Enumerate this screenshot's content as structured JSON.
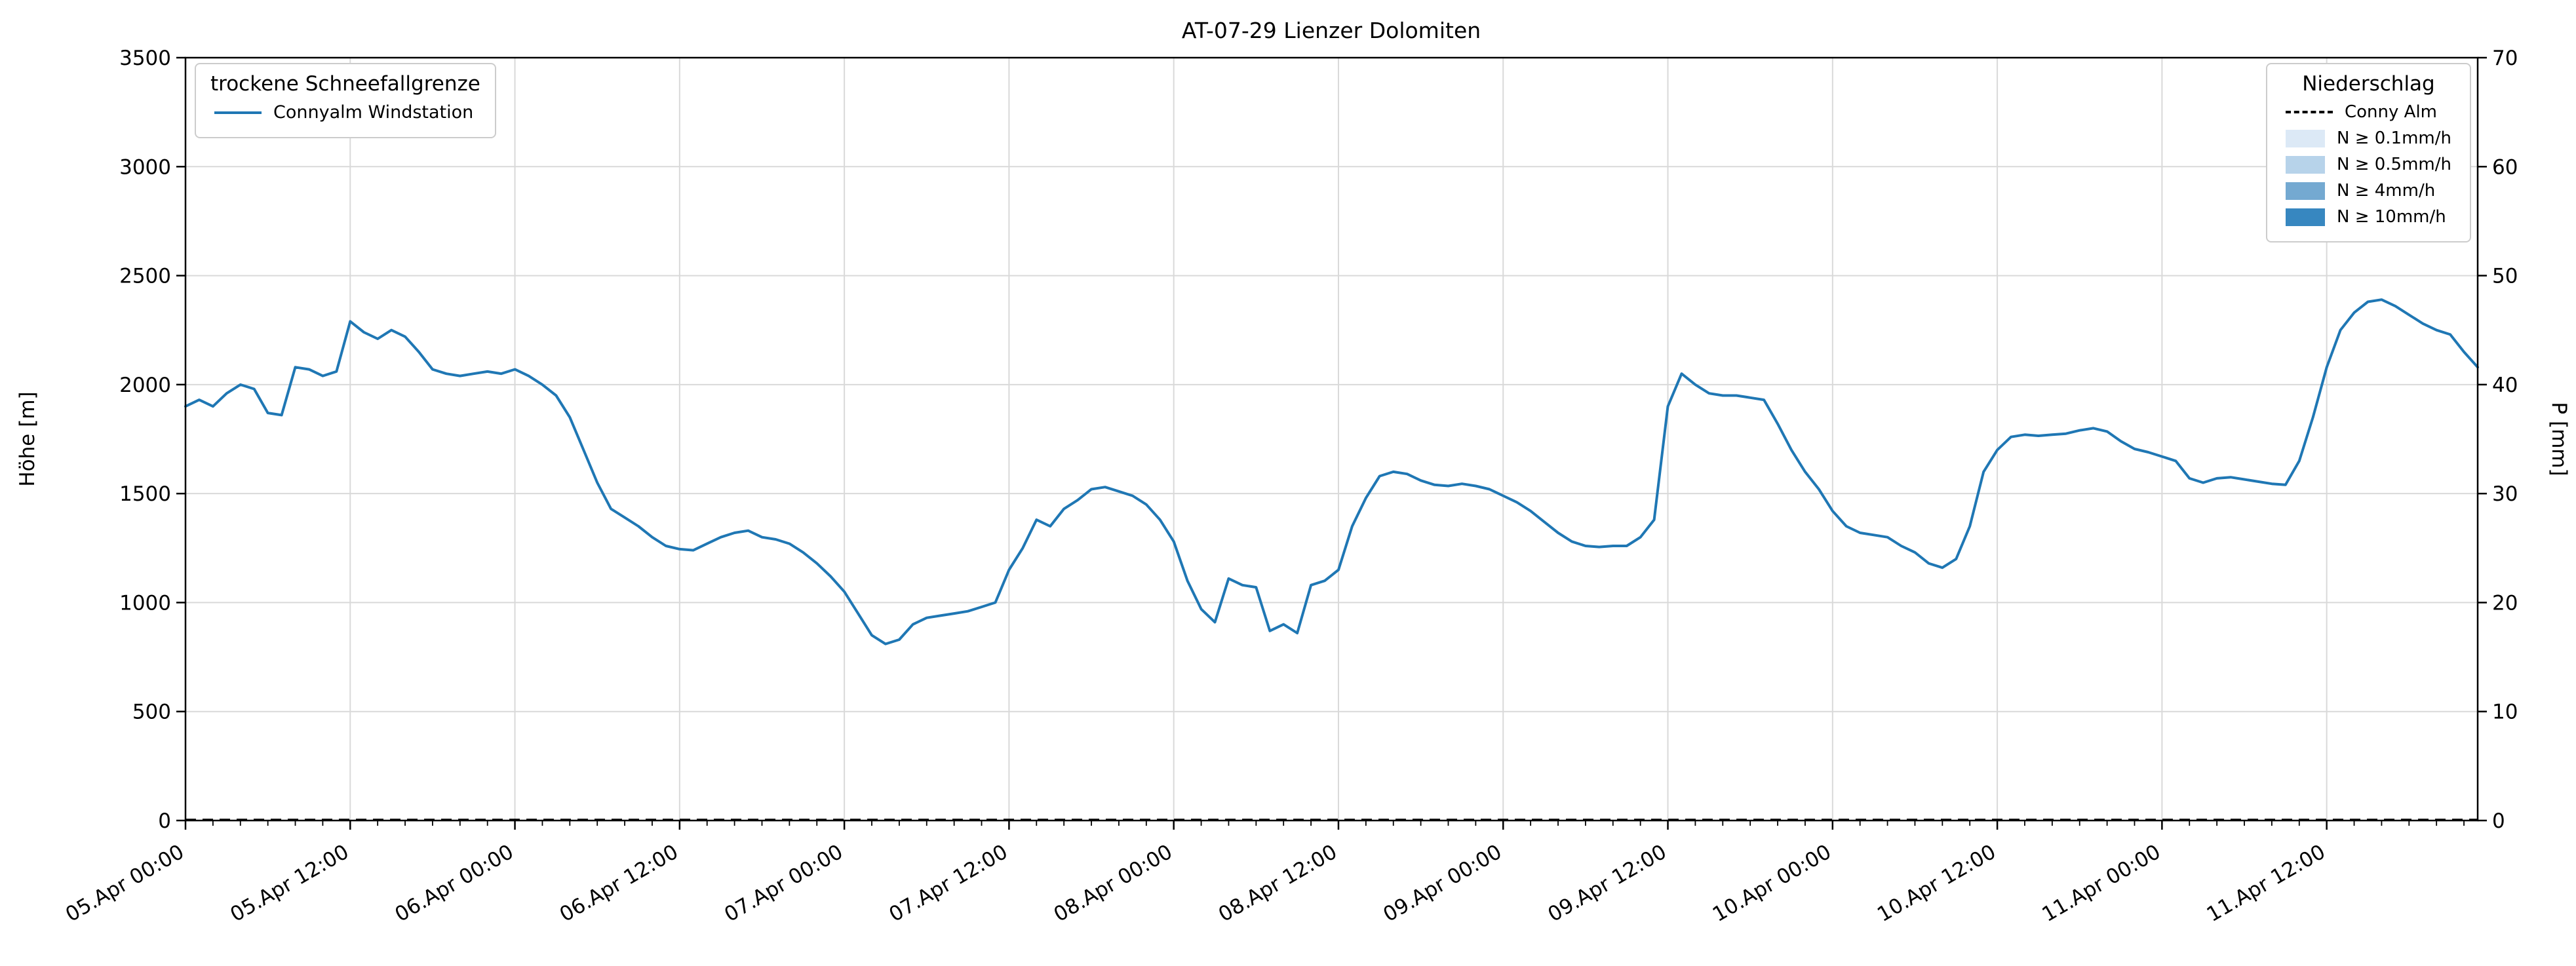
{
  "chart_data": {
    "type": "line",
    "title": "AT-07-29 Lienzer Dolomiten",
    "ylabel_left": "Höhe [m]",
    "ylabel_right": "P [mm]",
    "ylim_left": [
      0,
      3500
    ],
    "ylim_right": [
      0,
      70
    ],
    "xlim_hours": [
      0,
      167
    ],
    "x_axis_note": "hours since 05.Apr 00:00",
    "grid": true,
    "grid_color": "#d9d9d9",
    "x_tick_hours": [
      0,
      12,
      24,
      36,
      48,
      60,
      72,
      84,
      96,
      108,
      120,
      132,
      144,
      156
    ],
    "x_tick_labels": [
      "05.Apr 00:00",
      "05.Apr 12:00",
      "06.Apr 00:00",
      "06.Apr 12:00",
      "07.Apr 00:00",
      "07.Apr 12:00",
      "08.Apr 00:00",
      "08.Apr 12:00",
      "09.Apr 00:00",
      "09.Apr 12:00",
      "10.Apr 00:00",
      "10.Apr 12:00",
      "11.Apr 00:00",
      "11.Apr 12:00"
    ],
    "y_ticks_left": [
      0,
      500,
      1000,
      1500,
      2000,
      2500,
      3000,
      3500
    ],
    "y_ticks_right": [
      0,
      10,
      20,
      30,
      40,
      50,
      60,
      70
    ],
    "series": [
      {
        "name": "Connyalm Windstation",
        "axis": "left",
        "style": "solid",
        "color": "#1f77b4",
        "x_start_hour": 0,
        "x_step_hours": 1,
        "values": [
          1900,
          1930,
          1900,
          1960,
          2000,
          1980,
          1870,
          1860,
          2080,
          2070,
          2040,
          2060,
          2290,
          2240,
          2210,
          2250,
          2220,
          2150,
          2070,
          2050,
          2040,
          2050,
          2060,
          2050,
          2070,
          2040,
          2000,
          1950,
          1850,
          1700,
          1550,
          1430,
          1390,
          1350,
          1300,
          1260,
          1245,
          1240,
          1270,
          1300,
          1320,
          1330,
          1300,
          1290,
          1270,
          1230,
          1180,
          1120,
          1050,
          950,
          850,
          810,
          830,
          900,
          930,
          940,
          950,
          960,
          980,
          1000,
          1150,
          1250,
          1380,
          1350,
          1430,
          1470,
          1520,
          1530,
          1510,
          1490,
          1450,
          1380,
          1280,
          1100,
          970,
          910,
          1110,
          1080,
          1070,
          870,
          900,
          860,
          1080,
          1100,
          1150,
          1350,
          1480,
          1580,
          1600,
          1590,
          1560,
          1540,
          1535,
          1545,
          1535,
          1520,
          1490,
          1460,
          1420,
          1370,
          1320,
          1280,
          1260,
          1255,
          1260,
          1260,
          1300,
          1380,
          1900,
          2050,
          2000,
          1960,
          1950,
          1950,
          1940,
          1930,
          1820,
          1700,
          1600,
          1520,
          1420,
          1350,
          1320,
          1310,
          1300,
          1260,
          1230,
          1180,
          1160,
          1200,
          1350,
          1600,
          1700,
          1760,
          1770,
          1765,
          1770,
          1775,
          1790,
          1800,
          1785,
          1740,
          1705,
          1690,
          1670,
          1650,
          1570,
          1550,
          1570,
          1575,
          1565,
          1555,
          1545,
          1540,
          1650,
          1850,
          2080,
          2250,
          2330,
          2380,
          2390,
          2360,
          2320,
          2280,
          2250,
          2230,
          2150,
          2080
        ]
      },
      {
        "name": "Conny Alm",
        "axis": "right",
        "style": "dashed",
        "color": "#000000",
        "constant_value": 0
      }
    ]
  },
  "legends": {
    "left": {
      "title": "trockene Schneefallgrenze",
      "items": [
        {
          "label": "Connyalm Windstation",
          "color": "#1f77b4"
        }
      ]
    },
    "right": {
      "title": "Niederschlag",
      "items": [
        {
          "label": "Conny Alm",
          "color": "#000000",
          "style": "dashed-line"
        },
        {
          "label": "N ≥ 0.1mm/h",
          "color": "#dce9f6"
        },
        {
          "label": "N ≥ 0.5mm/h",
          "color": "#b7d3ea"
        },
        {
          "label": "N ≥ 4mm/h",
          "color": "#74a9d1"
        },
        {
          "label": "N ≥ 10mm/h",
          "color": "#3787c0"
        }
      ]
    }
  }
}
